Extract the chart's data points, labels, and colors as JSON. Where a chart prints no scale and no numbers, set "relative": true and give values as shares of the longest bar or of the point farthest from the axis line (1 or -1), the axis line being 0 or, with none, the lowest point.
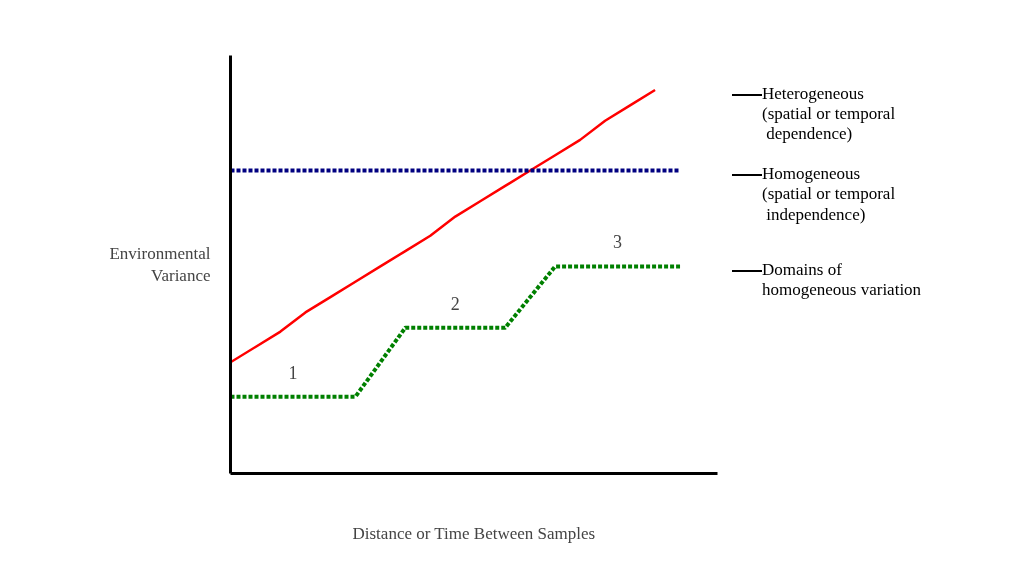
{
  "chart_data": {
    "type": "line",
    "relative": true,
    "xlabel": "Distance or Time Between Samples",
    "ylabel": "Environmental\nVariance",
    "categories": [
      null,
      null,
      null,
      null,
      null,
      null,
      null,
      null,
      null,
      null,
      null,
      null,
      null,
      null,
      null,
      null,
      null,
      null,
      null
    ],
    "series": [
      {
        "name": "Heterogeneous\n(spatial or temporal\n dependence)",
        "color": "#ff0000",
        "line_style": "solid",
        "values": [
          0.29,
          0.33,
          0.37,
          0.42,
          0.46,
          0.5,
          0.54,
          0.58,
          0.62,
          0.67,
          0.71,
          0.75,
          0.79,
          0.83,
          0.87,
          0.92,
          0.96,
          1.0,
          null
        ]
      },
      {
        "name": "Homogeneous\n(spatial or temporal\n independence)",
        "color": "#000080",
        "line_style": "dashed",
        "values": [
          0.79,
          0.79,
          0.79,
          0.79,
          0.79,
          0.79,
          0.79,
          0.79,
          0.79,
          0.79,
          0.79,
          0.79,
          0.79,
          0.79,
          0.79,
          0.79,
          0.79,
          0.79,
          0.79
        ]
      },
      {
        "name": "Domains of\nhomogeneous variation",
        "color": "#008000",
        "line_style": "dashed",
        "values": [
          0.2,
          0.2,
          0.2,
          0.2,
          0.2,
          0.2,
          0.29,
          0.38,
          0.38,
          0.38,
          0.38,
          0.38,
          0.46,
          0.54,
          0.54,
          0.54,
          0.54,
          0.54,
          0.54
        ]
      }
    ],
    "annotations": [
      "1",
      "2",
      "3"
    ],
    "legend": false,
    "grid": false,
    "marker": "none"
  }
}
